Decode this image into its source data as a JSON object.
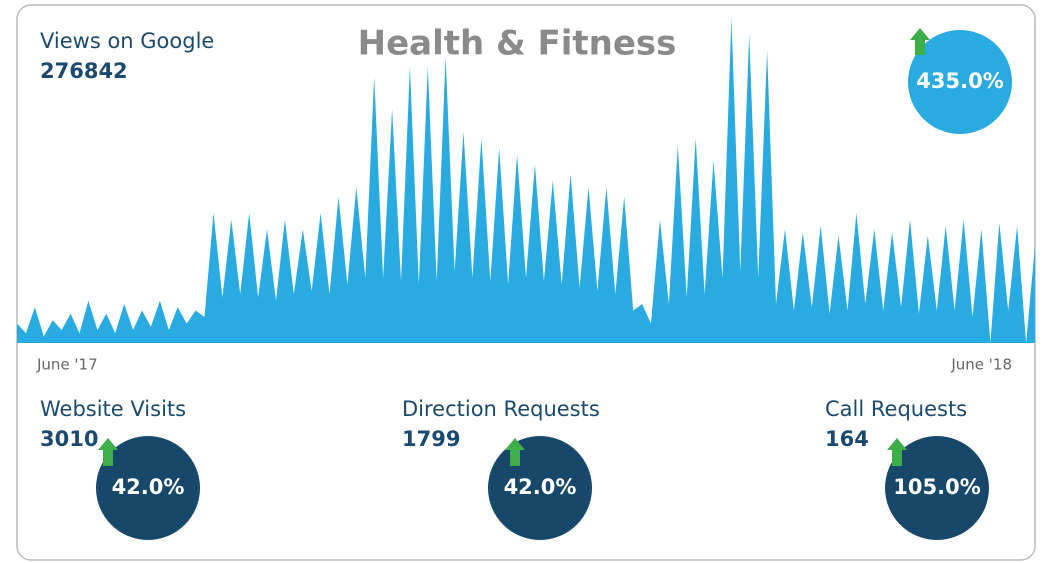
{
  "title": "Health & Fitness",
  "chart_data": {
    "type": "area",
    "color": "#29abe2",
    "ylim": [
      0,
      100
    ],
    "x_labels": [
      "June '17",
      "June '18"
    ],
    "values": [
      6,
      3,
      11,
      2,
      7,
      4,
      9,
      3,
      13,
      4,
      9,
      3,
      12,
      4,
      10,
      5,
      13,
      4,
      11,
      6,
      10,
      8,
      40,
      14,
      38,
      15,
      40,
      14,
      35,
      13,
      38,
      15,
      35,
      16,
      40,
      15,
      45,
      18,
      48,
      20,
      82,
      20,
      72,
      19,
      85,
      18,
      85,
      19,
      88,
      22,
      65,
      20,
      63,
      19,
      60,
      18,
      58,
      20,
      55,
      19,
      50,
      18,
      52,
      17,
      48,
      16,
      48,
      15,
      45,
      10,
      12,
      6,
      38,
      12,
      61,
      14,
      63,
      15,
      56,
      20,
      100,
      22,
      95,
      20,
      90,
      12,
      35,
      10,
      34,
      11,
      36,
      9,
      33,
      10,
      40,
      12,
      35,
      10,
      34,
      11,
      38,
      9,
      33,
      10,
      36,
      10,
      38,
      8,
      35,
      0,
      37,
      10,
      36,
      0,
      30
    ]
  },
  "metrics": [
    {
      "label": "Views on Google",
      "value": 276842,
      "change": "435.0%"
    },
    {
      "label": "Website Visits",
      "value": 3010,
      "change": "42.0%"
    },
    {
      "label": "Direction Requests",
      "value": 1799,
      "change": "42.0%"
    },
    {
      "label": "Call Requests",
      "value": 164,
      "change": "105.0%"
    }
  ]
}
